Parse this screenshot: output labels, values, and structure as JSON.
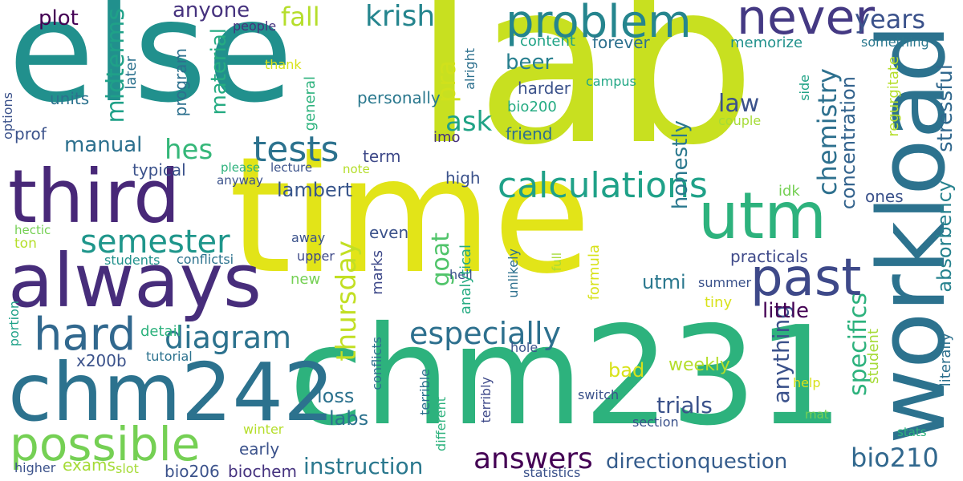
{
  "palette": {
    "background": "#ffffff",
    "colors": [
      "#440154",
      "#472c7a",
      "#3b518b",
      "#2c718e",
      "#21908d",
      "#27ad81",
      "#5cc863",
      "#aadc32",
      "#d5e21a",
      "#fde725"
    ]
  },
  "words": [
    {
      "text": "else",
      "color": "#21908d"
    },
    {
      "text": "lab",
      "color": "#c8e020"
    },
    {
      "text": "time",
      "color": "#e2e418"
    },
    {
      "text": "chm231",
      "color": "#2db27d"
    },
    {
      "text": "workload",
      "color": "#2c728e"
    },
    {
      "text": "third",
      "color": "#482878"
    },
    {
      "text": "always",
      "color": "#472d7b"
    },
    {
      "text": "chm242",
      "color": "#2c728e"
    },
    {
      "text": "problem",
      "color": "#25858e"
    },
    {
      "text": "never",
      "color": "#443983"
    },
    {
      "text": "utm",
      "color": "#2db27d"
    },
    {
      "text": "past",
      "color": "#3e4989"
    },
    {
      "text": "possible",
      "color": "#75d054"
    },
    {
      "text": "hard",
      "color": "#31688e"
    },
    {
      "text": "tests",
      "color": "#2c728e"
    },
    {
      "text": "calculations",
      "color": "#1fa188"
    },
    {
      "text": "especially",
      "color": "#2d708e"
    },
    {
      "text": "semester",
      "color": "#1f968b"
    },
    {
      "text": "diagram",
      "color": "#2c728e"
    },
    {
      "text": "answers",
      "color": "#440154"
    },
    {
      "text": "instruction",
      "color": "#2a788e"
    },
    {
      "text": "bio210",
      "color": "#31688e"
    },
    {
      "text": "directionquestion",
      "color": "#365d8d"
    },
    {
      "text": "krish",
      "color": "#25858e"
    },
    {
      "text": "fall",
      "color": "#b5de2b"
    },
    {
      "text": "years",
      "color": "#3b528b"
    },
    {
      "text": "plot",
      "color": "#440154"
    },
    {
      "text": "anyone",
      "color": "#46327e"
    },
    {
      "text": "ask",
      "color": "#20a386"
    },
    {
      "text": "hes",
      "color": "#35b779"
    },
    {
      "text": "goat",
      "color": "#50c46a"
    },
    {
      "text": "midterms",
      "color": "#1fa188"
    },
    {
      "text": "pra",
      "color": "#d0e11c"
    },
    {
      "text": "beer",
      "color": "#277f8e"
    },
    {
      "text": "law",
      "color": "#3b528b"
    },
    {
      "text": "thursday",
      "color": "#c2df23"
    },
    {
      "text": "chemistry",
      "color": "#2d708e"
    },
    {
      "text": "stressful",
      "color": "#31688e"
    },
    {
      "text": "concentration",
      "color": "#33638d"
    },
    {
      "text": "absorbency",
      "color": "#26828e"
    },
    {
      "text": "manual",
      "color": "#2d708e"
    },
    {
      "text": "lambert",
      "color": "#39568c"
    },
    {
      "text": "material",
      "color": "#25ab82"
    },
    {
      "text": "honestly",
      "color": "#2a788e"
    },
    {
      "text": "anything",
      "color": "#3b528b"
    },
    {
      "text": "specifics",
      "color": "#2db27d"
    },
    {
      "text": "little",
      "color": "#440154"
    },
    {
      "text": "practicals",
      "color": "#3e4989"
    },
    {
      "text": "utmi",
      "color": "#2a788e"
    },
    {
      "text": "loss",
      "color": "#2c728e"
    },
    {
      "text": "labs",
      "color": "#2c728e"
    },
    {
      "text": "trials",
      "color": "#3b528b"
    },
    {
      "text": "bad",
      "color": "#d8e219"
    },
    {
      "text": "weekly",
      "color": "#b5de2b"
    },
    {
      "text": "literally",
      "color": "#2d708e"
    },
    {
      "text": "student",
      "color": "#a5db36"
    },
    {
      "text": "x200b",
      "color": "#3b528b"
    },
    {
      "text": "early",
      "color": "#3b528b"
    },
    {
      "text": "exams",
      "color": "#a5db36"
    },
    {
      "text": "bio206",
      "color": "#3b528b"
    },
    {
      "text": "biochem",
      "color": "#46337f"
    },
    {
      "text": "units",
      "color": "#2c728e"
    },
    {
      "text": "prof",
      "color": "#3b528b"
    },
    {
      "text": "typical",
      "color": "#3b528b"
    },
    {
      "text": "term",
      "color": "#3e4989"
    },
    {
      "text": "harder",
      "color": "#3b528b"
    },
    {
      "text": "bio200",
      "color": "#25ab82"
    },
    {
      "text": "personally",
      "color": "#2a788e"
    },
    {
      "text": "friend",
      "color": "#2d708e"
    },
    {
      "text": "content",
      "color": "#20a386"
    },
    {
      "text": "forever",
      "color": "#2d708e"
    },
    {
      "text": "memorize",
      "color": "#21918c"
    },
    {
      "text": "high",
      "color": "#3b528b"
    },
    {
      "text": "even",
      "color": "#3b528b"
    },
    {
      "text": "later",
      "color": "#2c728e"
    },
    {
      "text": "program",
      "color": "#2d708e"
    },
    {
      "text": "general",
      "color": "#2db27d"
    },
    {
      "text": "people",
      "color": "#46327e"
    },
    {
      "text": "something",
      "color": "#2a788e"
    },
    {
      "text": "alright",
      "color": "#2d708e"
    },
    {
      "text": "campus",
      "color": "#22a785"
    },
    {
      "text": "regurgitate",
      "color": "#b5de2b"
    },
    {
      "text": "side",
      "color": "#20a386"
    },
    {
      "text": "couple",
      "color": "#a5db36"
    },
    {
      "text": "idk",
      "color": "#75d054"
    },
    {
      "text": "ones",
      "color": "#3b528b"
    },
    {
      "text": "imo",
      "color": "#46327e"
    },
    {
      "text": "thank",
      "color": "#d8e219"
    },
    {
      "text": "options",
      "color": "#3b528b"
    },
    {
      "text": "please",
      "color": "#2db27d"
    },
    {
      "text": "lecture",
      "color": "#3b528b"
    },
    {
      "text": "note",
      "color": "#b5de2b"
    },
    {
      "text": "anyway",
      "color": "#3b528b"
    },
    {
      "text": "hectic",
      "color": "#75d054"
    },
    {
      "text": "ton",
      "color": "#b5de2b"
    },
    {
      "text": "students",
      "color": "#21918c"
    },
    {
      "text": "conflictsi",
      "color": "#2c728e"
    },
    {
      "text": "away",
      "color": "#3b528b"
    },
    {
      "text": "upper",
      "color": "#3e4989"
    },
    {
      "text": "new",
      "color": "#75d054"
    },
    {
      "text": "hell",
      "color": "#3b528b"
    },
    {
      "text": "marks",
      "color": "#3e4989"
    },
    {
      "text": "analytical",
      "color": "#25ab82"
    },
    {
      "text": "unlikely",
      "color": "#2d708e"
    },
    {
      "text": "full",
      "color": "#a5db36"
    },
    {
      "text": "formula",
      "color": "#d8e219"
    },
    {
      "text": "summer",
      "color": "#3b528b"
    },
    {
      "text": "tiny",
      "color": "#d8e219"
    },
    {
      "text": "detail",
      "color": "#2db27d"
    },
    {
      "text": "tutorial",
      "color": "#2c728e"
    },
    {
      "text": "portion",
      "color": "#1fa188"
    },
    {
      "text": "hole",
      "color": "#3b528b"
    },
    {
      "text": "help",
      "color": "#d8e219"
    },
    {
      "text": "mat",
      "color": "#75d054"
    },
    {
      "text": "stats",
      "color": "#2db27d"
    },
    {
      "text": "conflicts",
      "color": "#2d708e"
    },
    {
      "text": "terrible",
      "color": "#2d708e"
    },
    {
      "text": "different",
      "color": "#2db27d"
    },
    {
      "text": "terribly",
      "color": "#3e4989"
    },
    {
      "text": "switch",
      "color": "#3b528b"
    },
    {
      "text": "section",
      "color": "#3b528b"
    },
    {
      "text": "winter",
      "color": "#b5de2b"
    },
    {
      "text": "higher",
      "color": "#3b528b"
    },
    {
      "text": "slot",
      "color": "#a5db36"
    },
    {
      "text": "statistics",
      "color": "#3b528b"
    }
  ]
}
